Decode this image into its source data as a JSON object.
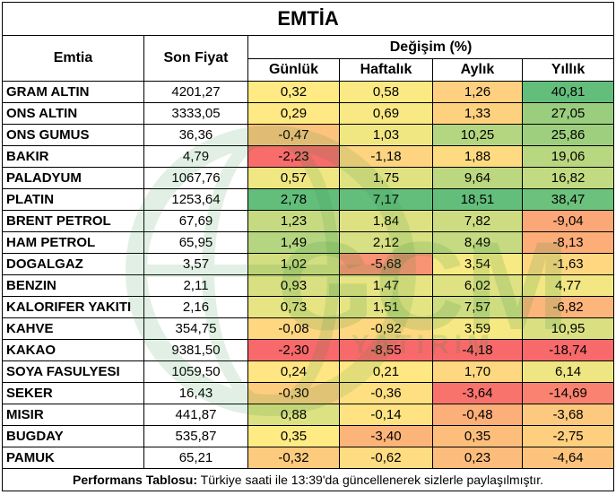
{
  "title": "EMTİA",
  "headers": {
    "name": "Emtia",
    "price": "Son Fiyat",
    "change_group": "Değişim (%)",
    "daily": "Günlük",
    "weekly": "Haftalık",
    "monthly": "Aylık",
    "yearly": "Yıllık"
  },
  "rows": [
    {
      "name": "GRAM ALTIN",
      "price": "4201,27",
      "daily": "0,32",
      "weekly": "0,58",
      "monthly": "1,26",
      "yearly": "40,81"
    },
    {
      "name": "ONS ALTIN",
      "price": "3333,05",
      "daily": "0,29",
      "weekly": "0,69",
      "monthly": "1,33",
      "yearly": "27,05"
    },
    {
      "name": "ONS GUMUS",
      "price": "36,36",
      "daily": "-0,47",
      "weekly": "1,03",
      "monthly": "10,25",
      "yearly": "25,86"
    },
    {
      "name": "BAKIR",
      "price": "4,79",
      "daily": "-2,23",
      "weekly": "-1,18",
      "monthly": "1,88",
      "yearly": "19,06"
    },
    {
      "name": "PALADYUM",
      "price": "1067,76",
      "daily": "0,57",
      "weekly": "1,75",
      "monthly": "9,64",
      "yearly": "16,82"
    },
    {
      "name": "PLATIN",
      "price": "1253,64",
      "daily": "2,78",
      "weekly": "7,17",
      "monthly": "18,51",
      "yearly": "38,47"
    },
    {
      "name": "BRENT PETROL",
      "price": "67,69",
      "daily": "1,23",
      "weekly": "1,84",
      "monthly": "7,82",
      "yearly": "-9,04"
    },
    {
      "name": "HAM PETROL",
      "price": "65,95",
      "daily": "1,49",
      "weekly": "2,12",
      "monthly": "8,49",
      "yearly": "-8,13"
    },
    {
      "name": "DOGALGAZ",
      "price": "3,57",
      "daily": "1,02",
      "weekly": "-5,68",
      "monthly": "3,54",
      "yearly": "-1,63"
    },
    {
      "name": "BENZIN",
      "price": "2,11",
      "daily": "0,93",
      "weekly": "1,47",
      "monthly": "6,02",
      "yearly": "4,77"
    },
    {
      "name": "KALORIFER YAKITI",
      "price": "2,16",
      "daily": "0,73",
      "weekly": "1,51",
      "monthly": "7,57",
      "yearly": "-6,82"
    },
    {
      "name": "KAHVE",
      "price": "354,75",
      "daily": "-0,08",
      "weekly": "-0,92",
      "monthly": "3,59",
      "yearly": "10,95"
    },
    {
      "name": "KAKAO",
      "price": "9381,50",
      "daily": "-2,30",
      "weekly": "-8,55",
      "monthly": "-4,18",
      "yearly": "-18,74"
    },
    {
      "name": "SOYA FASULYESI",
      "price": "1059,50",
      "daily": "0,24",
      "weekly": "0,21",
      "monthly": "1,70",
      "yearly": "6,14"
    },
    {
      "name": "SEKER",
      "price": "16,43",
      "daily": "-0,30",
      "weekly": "-0,36",
      "monthly": "-3,64",
      "yearly": "-14,69"
    },
    {
      "name": "MISIR",
      "price": "441,87",
      "daily": "0,88",
      "weekly": "-0,14",
      "monthly": "-0,48",
      "yearly": "-3,68"
    },
    {
      "name": "BUGDAY",
      "price": "535,87",
      "daily": "0,35",
      "weekly": "-3,40",
      "monthly": "0,35",
      "yearly": "-2,75"
    },
    {
      "name": "PAMUK",
      "price": "65,21",
      "daily": "-0,32",
      "weekly": "-0,62",
      "monthly": "0,23",
      "yearly": "-4,64"
    }
  ],
  "footer": {
    "label": "Performans Tablosu:",
    "text": " Türkiye saati ile 13:39'da güncellenerek sizlerle paylaşılmıştır."
  },
  "watermark": {
    "text": "GCM",
    "subtext": "YATIRIM",
    "color": "#2a8a3a",
    "icon": "globe-icon"
  },
  "colors": {
    "red": "#f8696b",
    "yellow": "#ffeb84",
    "green": "#63be7b"
  }
}
